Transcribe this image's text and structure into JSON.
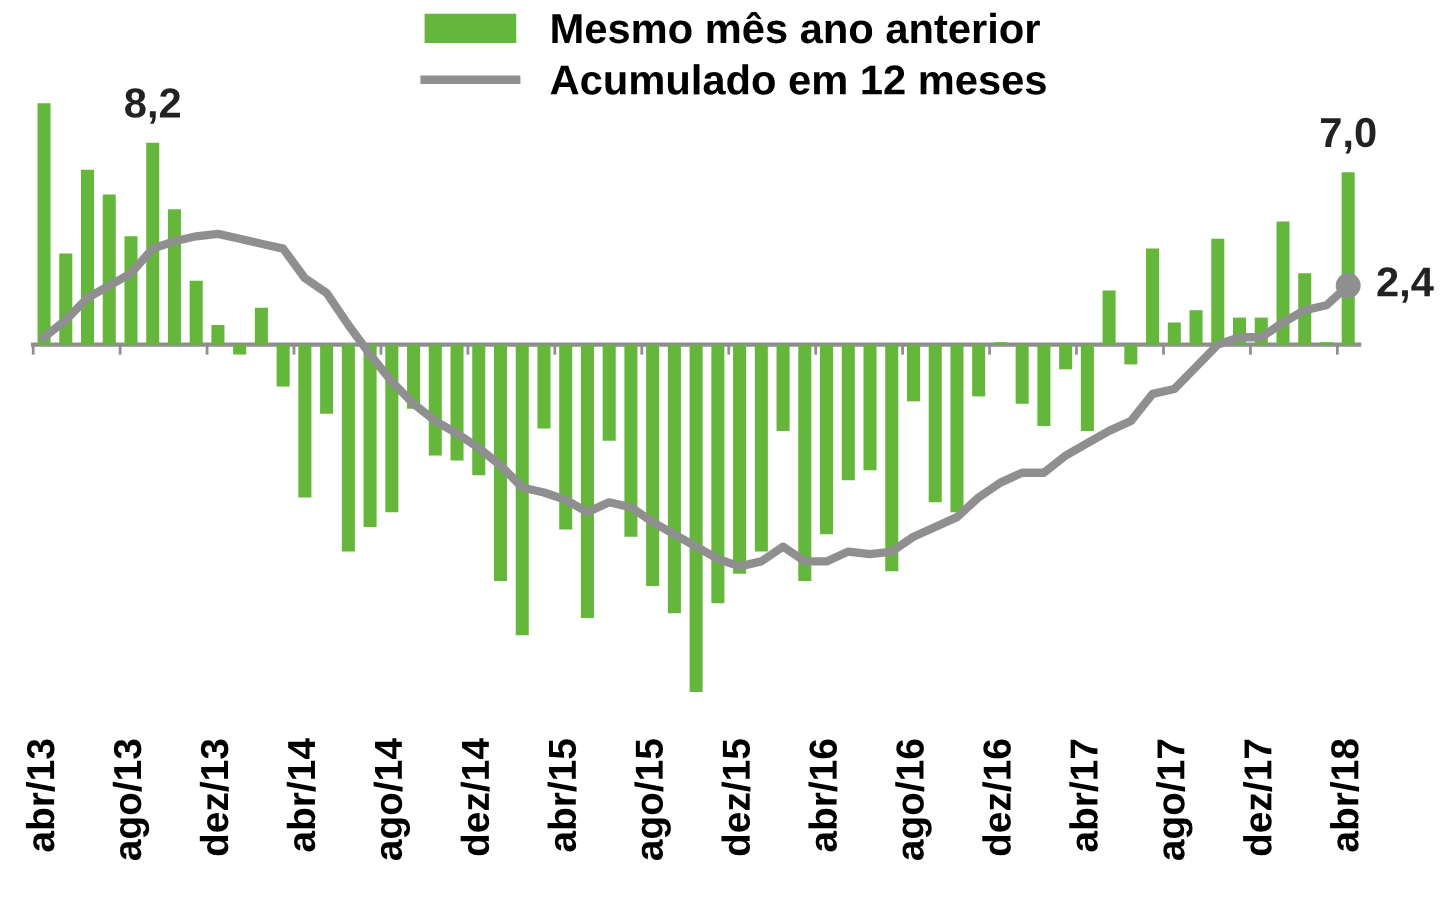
{
  "chart_data": {
    "type": "bar",
    "categories": [
      "abr/13",
      null,
      null,
      null,
      "ago/13",
      null,
      null,
      null,
      "dez/13",
      null,
      null,
      null,
      "abr/14",
      null,
      null,
      null,
      "ago/14",
      null,
      null,
      null,
      "dez/14",
      null,
      null,
      null,
      "abr/15",
      null,
      null,
      null,
      "ago/15",
      null,
      null,
      null,
      "dez/15",
      null,
      null,
      null,
      "abr/16",
      null,
      null,
      null,
      "ago/16",
      null,
      null,
      null,
      "dez/16",
      null,
      null,
      null,
      "abr/17",
      null,
      null,
      null,
      "ago/17",
      null,
      null,
      null,
      "dez/17",
      null,
      null,
      null,
      "abr/18"
    ],
    "series": [
      {
        "name": "Mesmo mês ano anterior",
        "color": "#65b73b",
        "values": [
          9.8,
          3.7,
          7.1,
          6.1,
          4.4,
          8.2,
          5.5,
          2.6,
          0.8,
          -0.4,
          1.5,
          -1.7,
          -6.2,
          -2.8,
          -8.4,
          -7.4,
          -6.8,
          -2.6,
          -4.5,
          -4.7,
          -5.3,
          -9.6,
          -11.8,
          -3.4,
          -7.5,
          -11.1,
          -3.9,
          -7.8,
          -9.8,
          -10.9,
          -14.1,
          -10.5,
          -9.3,
          -8.4,
          -3.5,
          -9.6,
          -7.7,
          -5.5,
          -5.1,
          -9.2,
          -2.3,
          -6.4,
          -6.8,
          -2.1,
          0.1,
          -2.4,
          -3.3,
          -1.0,
          -3.5,
          2.2,
          -0.8,
          3.9,
          0.9,
          1.4,
          4.3,
          1.1,
          1.1,
          5.0,
          2.9,
          0.1,
          7.0
        ],
        "value_labels": [
          null,
          null,
          null,
          null,
          null,
          "8,2",
          null,
          null,
          null,
          null,
          null,
          null,
          null,
          null,
          null,
          null,
          null,
          null,
          null,
          null,
          null,
          null,
          null,
          null,
          null,
          null,
          null,
          null,
          null,
          null,
          null,
          null,
          null,
          null,
          null,
          null,
          null,
          null,
          null,
          null,
          null,
          null,
          null,
          null,
          null,
          null,
          null,
          null,
          null,
          null,
          null,
          null,
          null,
          null,
          null,
          null,
          null,
          null,
          null,
          null,
          "7,0"
        ]
      },
      {
        "name": "Acumulado em 12 meses",
        "type": "line",
        "color": "#8f8f8f",
        "values": [
          0.3,
          1.0,
          1.9,
          2.4,
          2.9,
          3.9,
          4.2,
          4.4,
          4.5,
          4.3,
          4.1,
          3.9,
          2.7,
          2.1,
          0.8,
          -0.4,
          -1.5,
          -2.4,
          -3.1,
          -3.6,
          -4.2,
          -4.9,
          -5.8,
          -6.0,
          -6.3,
          -6.8,
          -6.4,
          -6.6,
          -7.2,
          -7.7,
          -8.2,
          -8.7,
          -9.0,
          -8.8,
          -8.2,
          -8.8,
          -8.8,
          -8.4,
          -8.5,
          -8.4,
          -7.8,
          -7.4,
          -7.0,
          -6.2,
          -5.6,
          -5.2,
          -5.2,
          -4.5,
          -4.0,
          -3.5,
          -3.1,
          -2.0,
          -1.8,
          -0.9,
          0.0,
          0.3,
          0.3,
          0.9,
          1.4,
          1.6,
          2.4
        ],
        "value_labels": [
          null,
          null,
          null,
          null,
          null,
          null,
          null,
          null,
          null,
          null,
          null,
          null,
          null,
          null,
          null,
          null,
          null,
          null,
          null,
          null,
          null,
          null,
          null,
          null,
          null,
          null,
          null,
          null,
          null,
          null,
          null,
          null,
          null,
          null,
          null,
          null,
          null,
          null,
          null,
          null,
          null,
          null,
          null,
          null,
          null,
          null,
          null,
          null,
          null,
          null,
          null,
          null,
          null,
          null,
          null,
          null,
          null,
          null,
          null,
          null,
          "2,4"
        ]
      }
    ],
    "tick_labels": "x",
    "grid": false,
    "legend": "top"
  }
}
